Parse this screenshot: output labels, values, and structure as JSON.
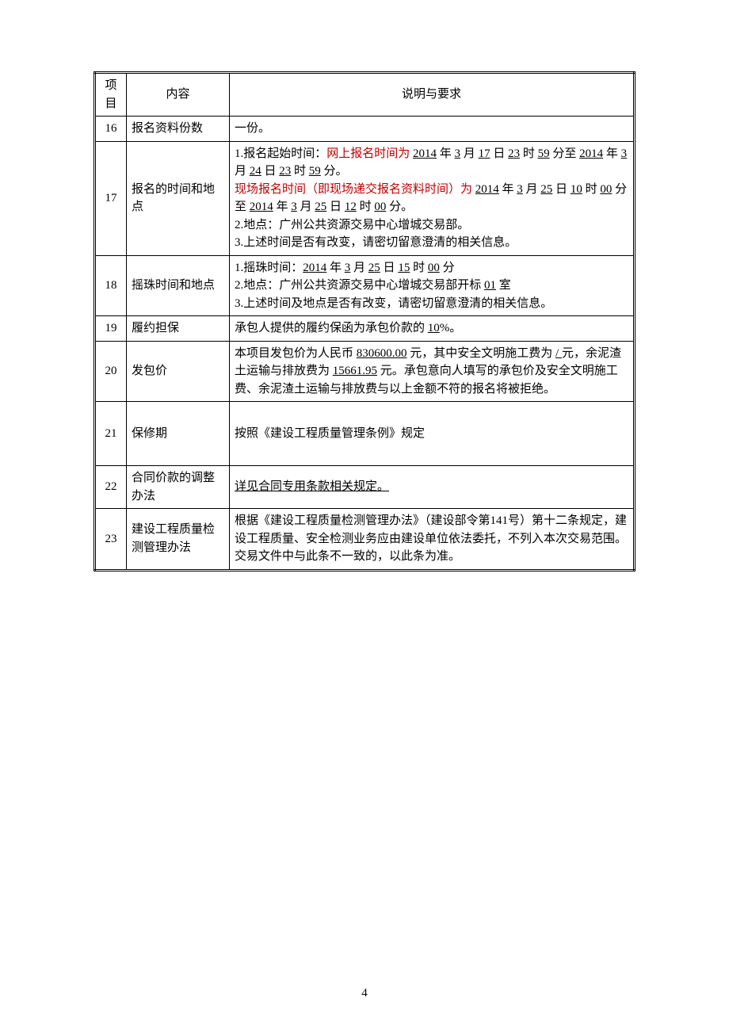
{
  "page_number": "4",
  "table": {
    "header": {
      "col_idx": "项目",
      "col_name": "内容",
      "col_desc": "说明与要求"
    },
    "rows": [
      {
        "idx": "16",
        "name": "报名资料份数",
        "desc_plain": "一份。"
      },
      {
        "idx": "17",
        "name": "报名的时间和地点",
        "desc_segments": [
          {
            "t": "1.报名起始时间："
          },
          {
            "t": "网上报名时间为 ",
            "red": true
          },
          {
            "t": "2014",
            "u": true
          },
          {
            "t": " 年 "
          },
          {
            "t": "3",
            "u": true
          },
          {
            "t": " 月 "
          },
          {
            "t": "17",
            "u": true
          },
          {
            "t": " 日 "
          },
          {
            "t": "23",
            "u": true
          },
          {
            "t": " 时 "
          },
          {
            "t": "59",
            "u": true
          },
          {
            "t": " 分至 "
          },
          {
            "t": "2014",
            "u": true
          },
          {
            "t": " 年 "
          },
          {
            "t": "3",
            "u": true
          },
          {
            "t": " 月 "
          },
          {
            "t": "24",
            "u": true
          },
          {
            "t": " 日 "
          },
          {
            "t": "23",
            "u": true
          },
          {
            "t": " 时 "
          },
          {
            "t": "59",
            "u": true
          },
          {
            "t": " 分。"
          },
          {
            "br": true
          },
          {
            "t": "现场报名时间（即现场递交报名资料时间）为 ",
            "red": true
          },
          {
            "t": "2014",
            "u": true
          },
          {
            "t": " 年 "
          },
          {
            "t": "3",
            "u": true
          },
          {
            "t": " 月 "
          },
          {
            "t": "25",
            "u": true
          },
          {
            "t": " 日 "
          },
          {
            "t": "10",
            "u": true
          },
          {
            "t": " 时 "
          },
          {
            "t": "00",
            "u": true
          },
          {
            "t": " 分至 "
          },
          {
            "t": "2014",
            "u": true
          },
          {
            "t": " 年 "
          },
          {
            "t": "3",
            "u": true
          },
          {
            "t": " 月 "
          },
          {
            "t": "25",
            "u": true
          },
          {
            "t": " 日 "
          },
          {
            "t": "12",
            "u": true
          },
          {
            "t": " 时 "
          },
          {
            "t": "00",
            "u": true
          },
          {
            "t": " 分。"
          },
          {
            "br": true
          },
          {
            "t": "2.地点：广州公共资源交易中心增城交易部。"
          },
          {
            "br": true
          },
          {
            "t": "3.上述时间是否有改变，请密切留意澄清的相关信息。"
          }
        ]
      },
      {
        "idx": "18",
        "name": "摇珠时间和地点",
        "desc_segments": [
          {
            "t": "1.摇珠时间："
          },
          {
            "t": "2014",
            "u": true
          },
          {
            "t": " 年 "
          },
          {
            "t": "3",
            "u": true
          },
          {
            "t": " 月 "
          },
          {
            "t": "25",
            "u": true
          },
          {
            "t": " 日 "
          },
          {
            "t": "15",
            "u": true
          },
          {
            "t": " 时 "
          },
          {
            "t": "00",
            "u": true
          },
          {
            "t": " 分"
          },
          {
            "br": true
          },
          {
            "t": "2.地点：广州公共资源交易中心增城交易部开标 "
          },
          {
            "t": "01",
            "u": true
          },
          {
            "t": " 室"
          },
          {
            "br": true
          },
          {
            "t": "3.上述时间及地点是否有改变，请密切留意澄清的相关信息。"
          }
        ]
      },
      {
        "idx": "19",
        "name": "履约担保",
        "desc_segments": [
          {
            "t": "承包人提供的履约保函为承包价款的 "
          },
          {
            "t": "10",
            "u": true
          },
          {
            "t": "%。"
          }
        ]
      },
      {
        "idx": "20",
        "name": "发包价",
        "desc_segments": [
          {
            "t": "本项目发包价为人民币 "
          },
          {
            "t": "830600.00",
            "u": true
          },
          {
            "t": " 元，其中安全文明施工费为 "
          },
          {
            "t": " / ",
            "u": true
          },
          {
            "t": " 元，余泥渣土运输与排放费为 "
          },
          {
            "t": "15661.95",
            "u": true
          },
          {
            "t": " 元。承包意向人填写的承包价及安全文明施工费、余泥渣土运输与排放费与以上金额不符的报名将被拒绝。"
          }
        ]
      },
      {
        "idx": "21",
        "name": "保修期",
        "tall": true,
        "desc_plain": "按照《建设工程质量管理条例》规定"
      },
      {
        "idx": "22",
        "name": "合同价款的调整办法",
        "desc_segments": [
          {
            "t": "详见合同专用条款相关规定。",
            "u": true
          }
        ]
      },
      {
        "idx": "23",
        "name": "建设工程质量检测管理办法",
        "desc_plain": "根据《建设工程质量检测管理办法》（建设部令第141号）第十二条规定，建设工程质量、安全检测业务应由建设单位依法委托，不列入本次交易范围。交易文件中与此条不一致的，以此条为准。"
      }
    ]
  }
}
